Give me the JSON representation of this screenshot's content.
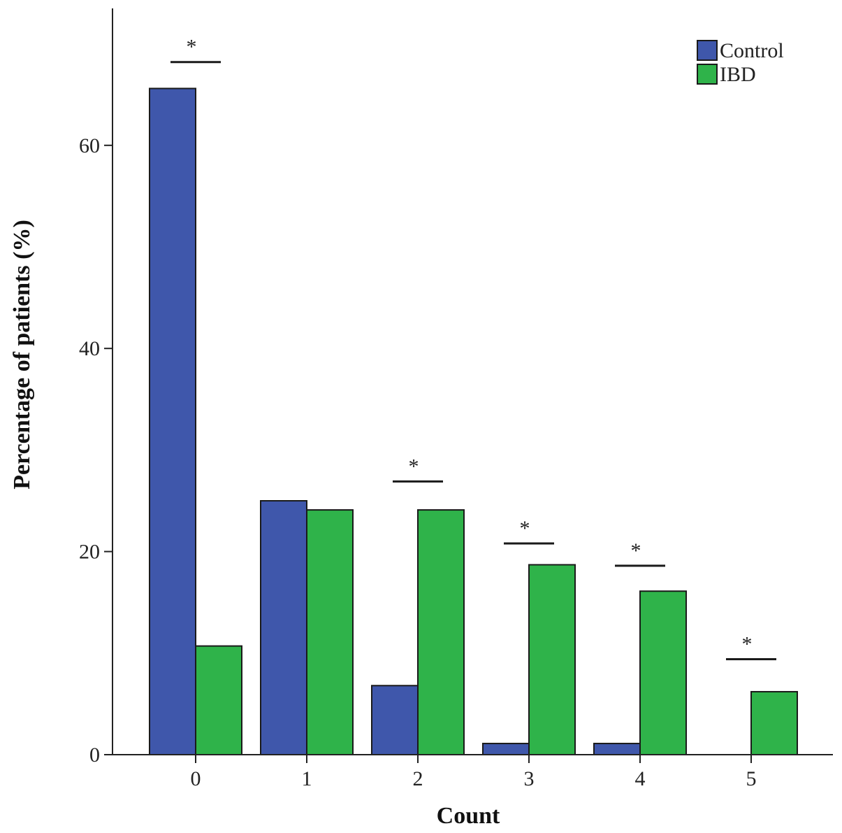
{
  "colors": {
    "control": "#3f57ab",
    "ibd": "#2fb34a",
    "axis": "#222222"
  },
  "chart_data": {
    "type": "bar",
    "title": "",
    "xlabel": "Count",
    "ylabel": "Percentage of patients (%)",
    "categories": [
      "0",
      "1",
      "2",
      "3",
      "4",
      "5"
    ],
    "series": [
      {
        "name": "Control",
        "values": [
          65.6,
          25.0,
          6.8,
          1.1,
          1.1,
          0.0
        ]
      },
      {
        "name": "IBD",
        "values": [
          10.7,
          24.1,
          24.1,
          18.7,
          16.1,
          6.2
        ]
      }
    ],
    "ylim": [
      0,
      75
    ],
    "yticks": [
      "0",
      "20",
      "40",
      "60"
    ],
    "grid": false,
    "legend": "top-right",
    "significance": [
      {
        "category": "0",
        "label": "*",
        "level": 68.2
      },
      {
        "category": "2",
        "label": "*",
        "level": 26.9
      },
      {
        "category": "3",
        "label": "*",
        "level": 20.8
      },
      {
        "category": "4",
        "label": "*",
        "level": 18.6
      },
      {
        "category": "5",
        "label": "*",
        "level": 9.4
      }
    ]
  }
}
